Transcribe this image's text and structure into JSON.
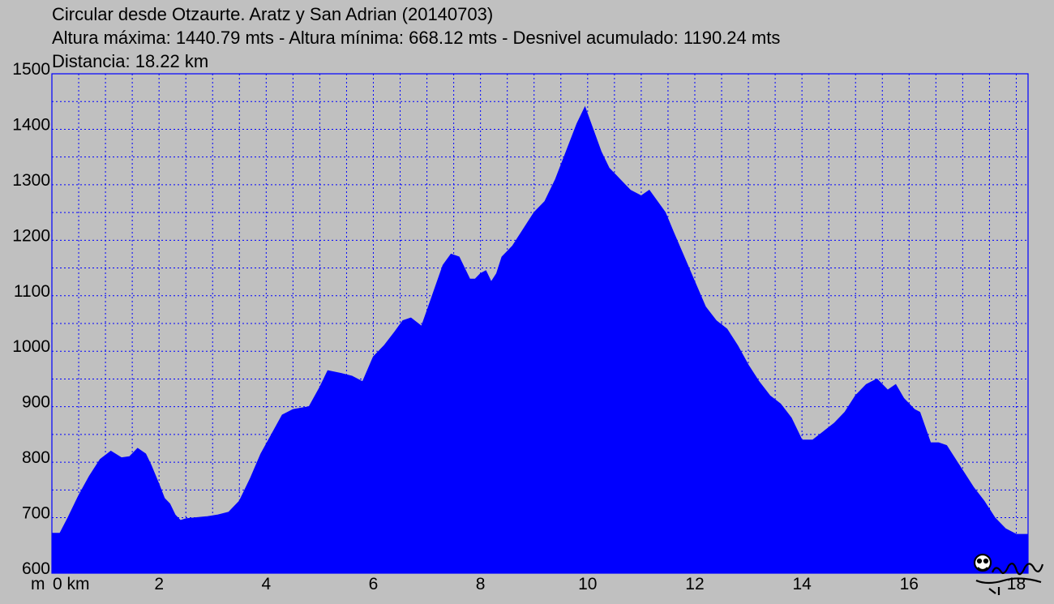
{
  "title": "Circular desde Otzaurte. Aratz y San Adrian (20140703)",
  "stats_line": "Altura máxima: 1440.79 mts - Altura mínima: 668.12 mts - Desnivel acumulado: 1190.24 mts",
  "distance_line": "Distancia: 18.22 km",
  "colors": {
    "fill": "#0000ff",
    "grid": "#0000ff",
    "background": "#c0c0c0"
  },
  "chart_data": {
    "type": "area",
    "title": "Circular desde Otzaurte. Aratz y San Adrian (20140703)",
    "xlabel": "km",
    "ylabel": "m",
    "xlim": [
      0,
      18.22
    ],
    "ylim": [
      600,
      1500
    ],
    "grid": true,
    "y_ticks": [
      "600",
      "700",
      "800",
      "900",
      "1000",
      "1100",
      "1200",
      "1300",
      "1400",
      "1500"
    ],
    "x_ticks": [
      "0 km",
      "2",
      "4",
      "6",
      "8",
      "10",
      "12",
      "14",
      "16",
      "18"
    ],
    "y_unit": "m",
    "series": [
      {
        "x": [
          0,
          0.15,
          0.3,
          0.5,
          0.7,
          0.9,
          1.1,
          1.3,
          1.45,
          1.6,
          1.75,
          1.85,
          2.0,
          2.1,
          2.2,
          2.3,
          2.4,
          2.5,
          2.7,
          2.9,
          3.1,
          3.3,
          3.5,
          3.7,
          3.9,
          4.1,
          4.3,
          4.5,
          4.8,
          5.0,
          5.15,
          5.4,
          5.6,
          5.8,
          6.0,
          6.2,
          6.4,
          6.55,
          6.7,
          6.9,
          7.1,
          7.3,
          7.45,
          7.6,
          7.7,
          7.8,
          7.9,
          8.0,
          8.1,
          8.2,
          8.3,
          8.4,
          8.6,
          8.8,
          9.0,
          9.2,
          9.4,
          9.6,
          9.8,
          9.95,
          10.1,
          10.25,
          10.4,
          10.6,
          10.8,
          11.0,
          11.15,
          11.3,
          11.45,
          11.6,
          11.8,
          12.0,
          12.2,
          12.4,
          12.6,
          12.8,
          13.0,
          13.2,
          13.4,
          13.6,
          13.8,
          14.0,
          14.2,
          14.4,
          14.6,
          14.8,
          15.0,
          15.2,
          15.4,
          15.6,
          15.75,
          15.9,
          16.0,
          16.1,
          16.2,
          16.4,
          16.55,
          16.7,
          16.8,
          16.9,
          17.0,
          17.2,
          17.4,
          17.6,
          17.8,
          18.0,
          18.1,
          18.22
        ],
        "y": [
          672,
          672,
          700,
          740,
          775,
          805,
          820,
          808,
          810,
          825,
          815,
          795,
          760,
          735,
          725,
          705,
          695,
          698,
          700,
          702,
          705,
          710,
          730,
          770,
          815,
          850,
          885,
          895,
          900,
          935,
          965,
          960,
          955,
          945,
          990,
          1010,
          1035,
          1055,
          1060,
          1045,
          1100,
          1155,
          1175,
          1170,
          1150,
          1130,
          1130,
          1140,
          1145,
          1125,
          1140,
          1170,
          1190,
          1220,
          1250,
          1270,
          1310,
          1360,
          1410,
          1440,
          1400,
          1360,
          1330,
          1310,
          1290,
          1280,
          1290,
          1270,
          1250,
          1215,
          1170,
          1125,
          1080,
          1055,
          1040,
          1010,
          975,
          945,
          920,
          905,
          880,
          840,
          840,
          855,
          870,
          890,
          920,
          940,
          950,
          930,
          940,
          915,
          905,
          895,
          890,
          835,
          835,
          830,
          815,
          800,
          785,
          755,
          730,
          700,
          680,
          670,
          670,
          670
        ]
      }
    ]
  },
  "logo": {
    "text": "elpalaxo",
    "icon": "cartoon-signature-logo"
  }
}
